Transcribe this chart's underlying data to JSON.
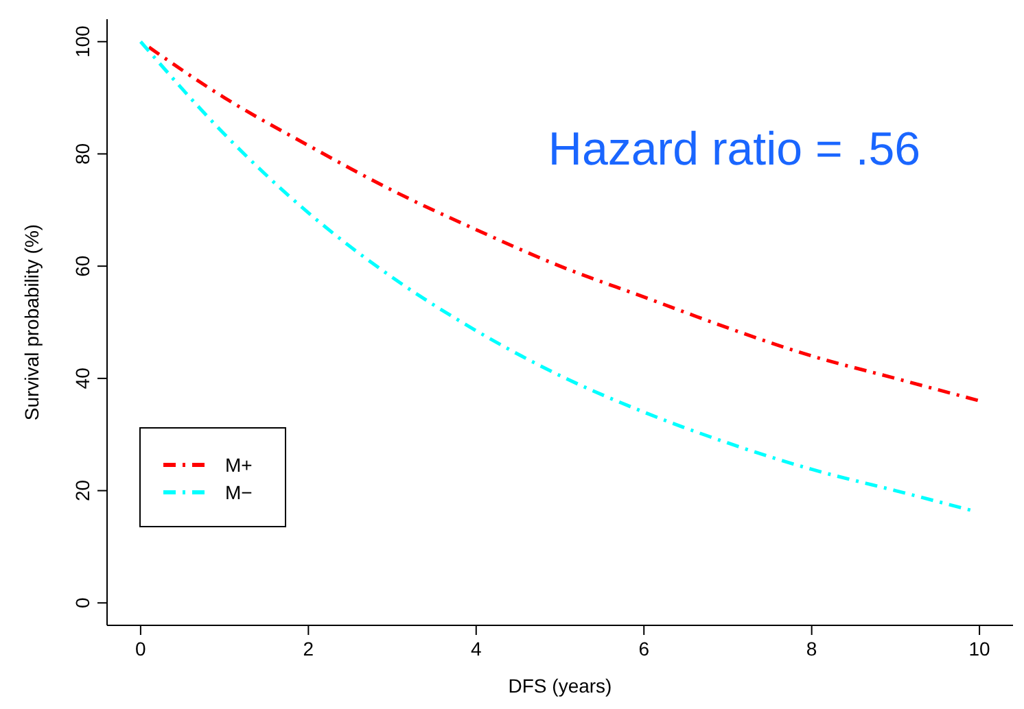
{
  "chart_data": {
    "type": "line",
    "xlabel": "DFS (years)",
    "ylabel": "Survival probability (%)",
    "xlim": [
      -0.4,
      10.4
    ],
    "ylim": [
      -4,
      104
    ],
    "xticks": [
      0,
      2,
      4,
      6,
      8,
      10
    ],
    "yticks": [
      0,
      20,
      40,
      60,
      80,
      100
    ],
    "grid": false,
    "legend": "bottom left",
    "marker": "none",
    "line_style": "dashed",
    "annotations": [
      "Hazard ratio = .56"
    ],
    "series": [
      {
        "name": "M+",
        "color": "#ff0000",
        "x": [
          0.1,
          1,
          2,
          3,
          4,
          5,
          6,
          7,
          8,
          9,
          10
        ],
        "values": [
          99,
          90,
          81.5,
          73.5,
          66.5,
          60,
          54.5,
          49,
          44,
          40,
          36
        ]
      },
      {
        "name": "M−",
        "color": "#00ffff",
        "x": [
          0,
          1,
          2,
          3,
          4,
          5,
          6,
          7,
          8,
          9,
          9.9
        ],
        "values": [
          100,
          83.5,
          69.5,
          58,
          48.5,
          40.5,
          34,
          28.5,
          23.8,
          20,
          16.5
        ]
      }
    ]
  }
}
